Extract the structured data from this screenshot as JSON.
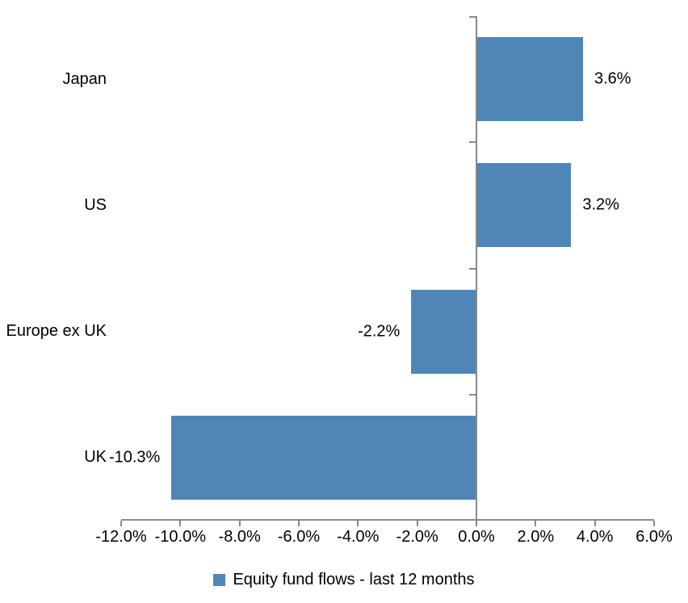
{
  "chart_data": {
    "type": "bar",
    "orientation": "horizontal",
    "categories": [
      "Japan",
      "US",
      "Europe ex UK",
      "UK"
    ],
    "values": [
      3.6,
      3.2,
      -2.2,
      -10.3
    ],
    "data_labels": [
      "3.6%",
      "3.2%",
      "-2.2%",
      "-10.3%"
    ],
    "xlim": [
      -12,
      6
    ],
    "x_ticks": [
      -12,
      -10,
      -8,
      -6,
      -4,
      -2,
      0,
      2,
      4,
      6
    ],
    "x_tick_labels": [
      "-12.0%",
      "-10.0%",
      "-8.0%",
      "-6.0%",
      "-4.0%",
      "-2.0%",
      "0.0%",
      "2.0%",
      "4.0%",
      "6.0%"
    ],
    "grid": false,
    "legend_position": "bottom-center",
    "legend": {
      "label": "Equity fund flows - last 12 months"
    },
    "colors": {
      "bar": "#4E86B8",
      "axis": "#898989",
      "text": "#000000",
      "background": "#FFFFFF"
    }
  }
}
